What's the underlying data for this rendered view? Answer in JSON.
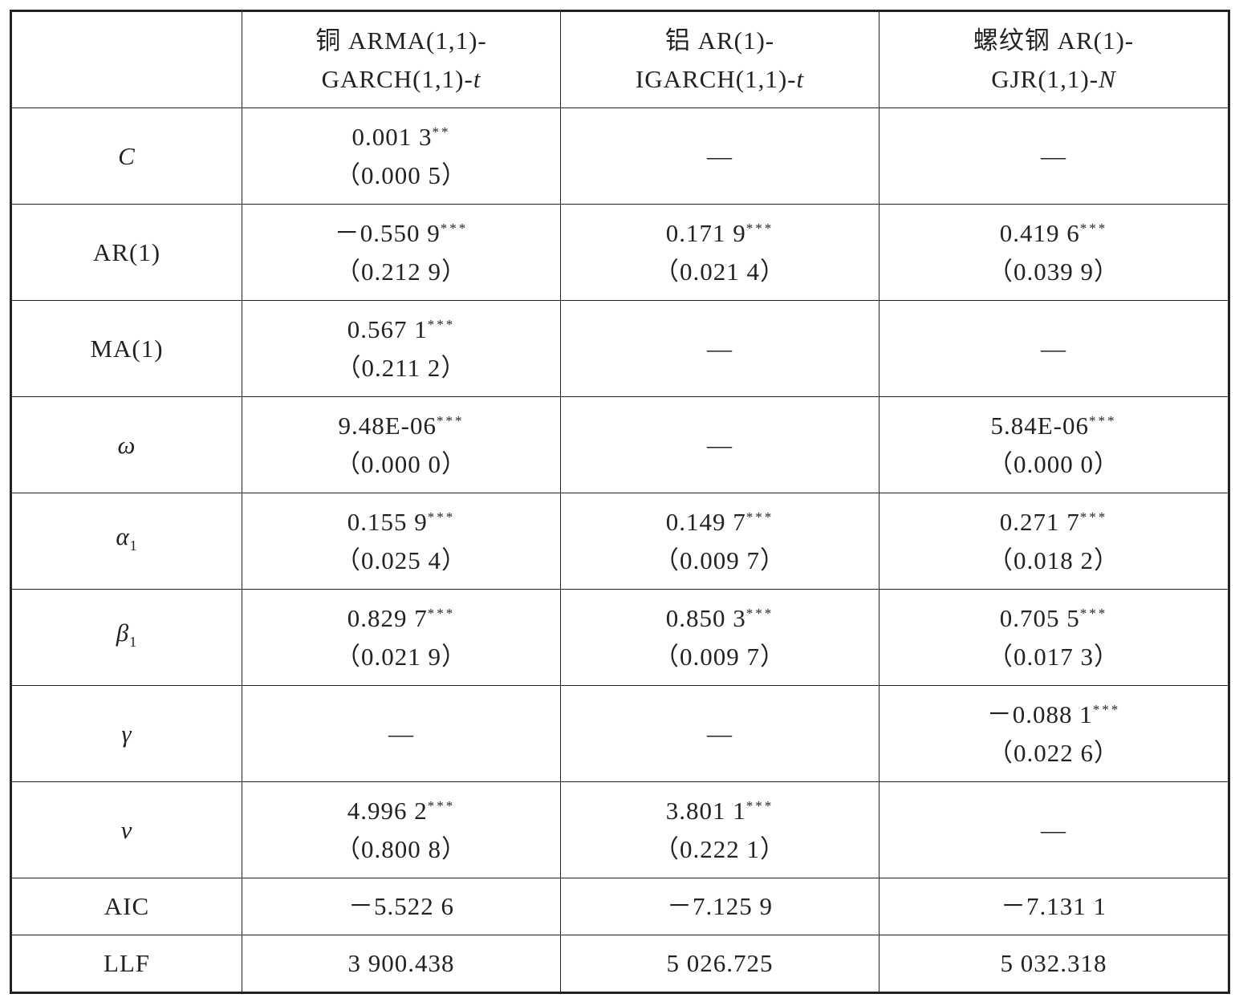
{
  "table": {
    "header": [
      {
        "line1": "铜 ARMA(1,1)-",
        "line2": "GARCH(1,1)-",
        "line2_italic": "t"
      },
      {
        "line1": "铝 AR(1)-",
        "line2": "IGARCH(1,1)-",
        "line2_italic": "t"
      },
      {
        "line1": "螺纹钢 AR(1)-",
        "line2": "GJR(1,1)-",
        "line2_italic": "N"
      }
    ],
    "rows": [
      {
        "label": {
          "text": "C",
          "italic": true
        },
        "cells": [
          {
            "estimate": "0.001 3",
            "sig": "**",
            "se": "（0.000 5）"
          },
          {
            "text": "—"
          },
          {
            "text": "—"
          }
        ]
      },
      {
        "label": {
          "text": "AR(1)",
          "italic": false
        },
        "cells": [
          {
            "estimate": "－0.550 9",
            "sig": "***",
            "se": "（0.212 9）"
          },
          {
            "estimate": "0.171 9",
            "sig": "***",
            "se": "（0.021 4）"
          },
          {
            "estimate": "0.419 6",
            "sig": "***",
            "se": "（0.039 9）"
          }
        ]
      },
      {
        "label": {
          "text": "MA(1)",
          "italic": false
        },
        "cells": [
          {
            "estimate": "0.567 1",
            "sig": "***",
            "se": "（0.211 2）"
          },
          {
            "text": "—"
          },
          {
            "text": "—"
          }
        ]
      },
      {
        "label": {
          "text": "ω",
          "italic": true
        },
        "cells": [
          {
            "estimate": "9.48E-06",
            "sig": "***",
            "se": "（0.000 0）"
          },
          {
            "text": "—"
          },
          {
            "estimate": "5.84E-06",
            "sig": "***",
            "se": "（0.000 0）"
          }
        ]
      },
      {
        "label": {
          "text": "α",
          "italic": true,
          "sub": "1"
        },
        "cells": [
          {
            "estimate": "0.155 9",
            "sig": "***",
            "se": "（0.025 4）"
          },
          {
            "estimate": "0.149 7",
            "sig": "***",
            "se": "（0.009 7）"
          },
          {
            "estimate": "0.271 7",
            "sig": "***",
            "se": "（0.018 2）"
          }
        ]
      },
      {
        "label": {
          "text": "β",
          "italic": true,
          "sub": "1"
        },
        "cells": [
          {
            "estimate": "0.829 7",
            "sig": "***",
            "se": "（0.021 9）"
          },
          {
            "estimate": "0.850 3",
            "sig": "***",
            "se": "（0.009 7）"
          },
          {
            "estimate": "0.705 5",
            "sig": "***",
            "se": "（0.017 3）"
          }
        ]
      },
      {
        "label": {
          "text": "γ",
          "italic": true
        },
        "cells": [
          {
            "text": "—"
          },
          {
            "text": "—"
          },
          {
            "estimate": "－0.088 1",
            "sig": "***",
            "se": "（0.022 6）"
          }
        ]
      },
      {
        "label": {
          "text": "ν",
          "italic": true
        },
        "cells": [
          {
            "estimate": "4.996 2",
            "sig": "***",
            "se": "（0.800 8）"
          },
          {
            "estimate": "3.801 1",
            "sig": "***",
            "se": "（0.222 1）"
          },
          {
            "text": "—"
          }
        ]
      },
      {
        "label": {
          "text": "AIC",
          "italic": false
        },
        "cells": [
          {
            "text": "－5.522 6"
          },
          {
            "text": "－7.125 9"
          },
          {
            "text": "－7.131 1"
          }
        ]
      },
      {
        "label": {
          "text": "LLF",
          "italic": false
        },
        "cells": [
          {
            "text": "3 900.438"
          },
          {
            "text": "5 026.725"
          },
          {
            "text": "5 032.318"
          }
        ]
      }
    ]
  }
}
